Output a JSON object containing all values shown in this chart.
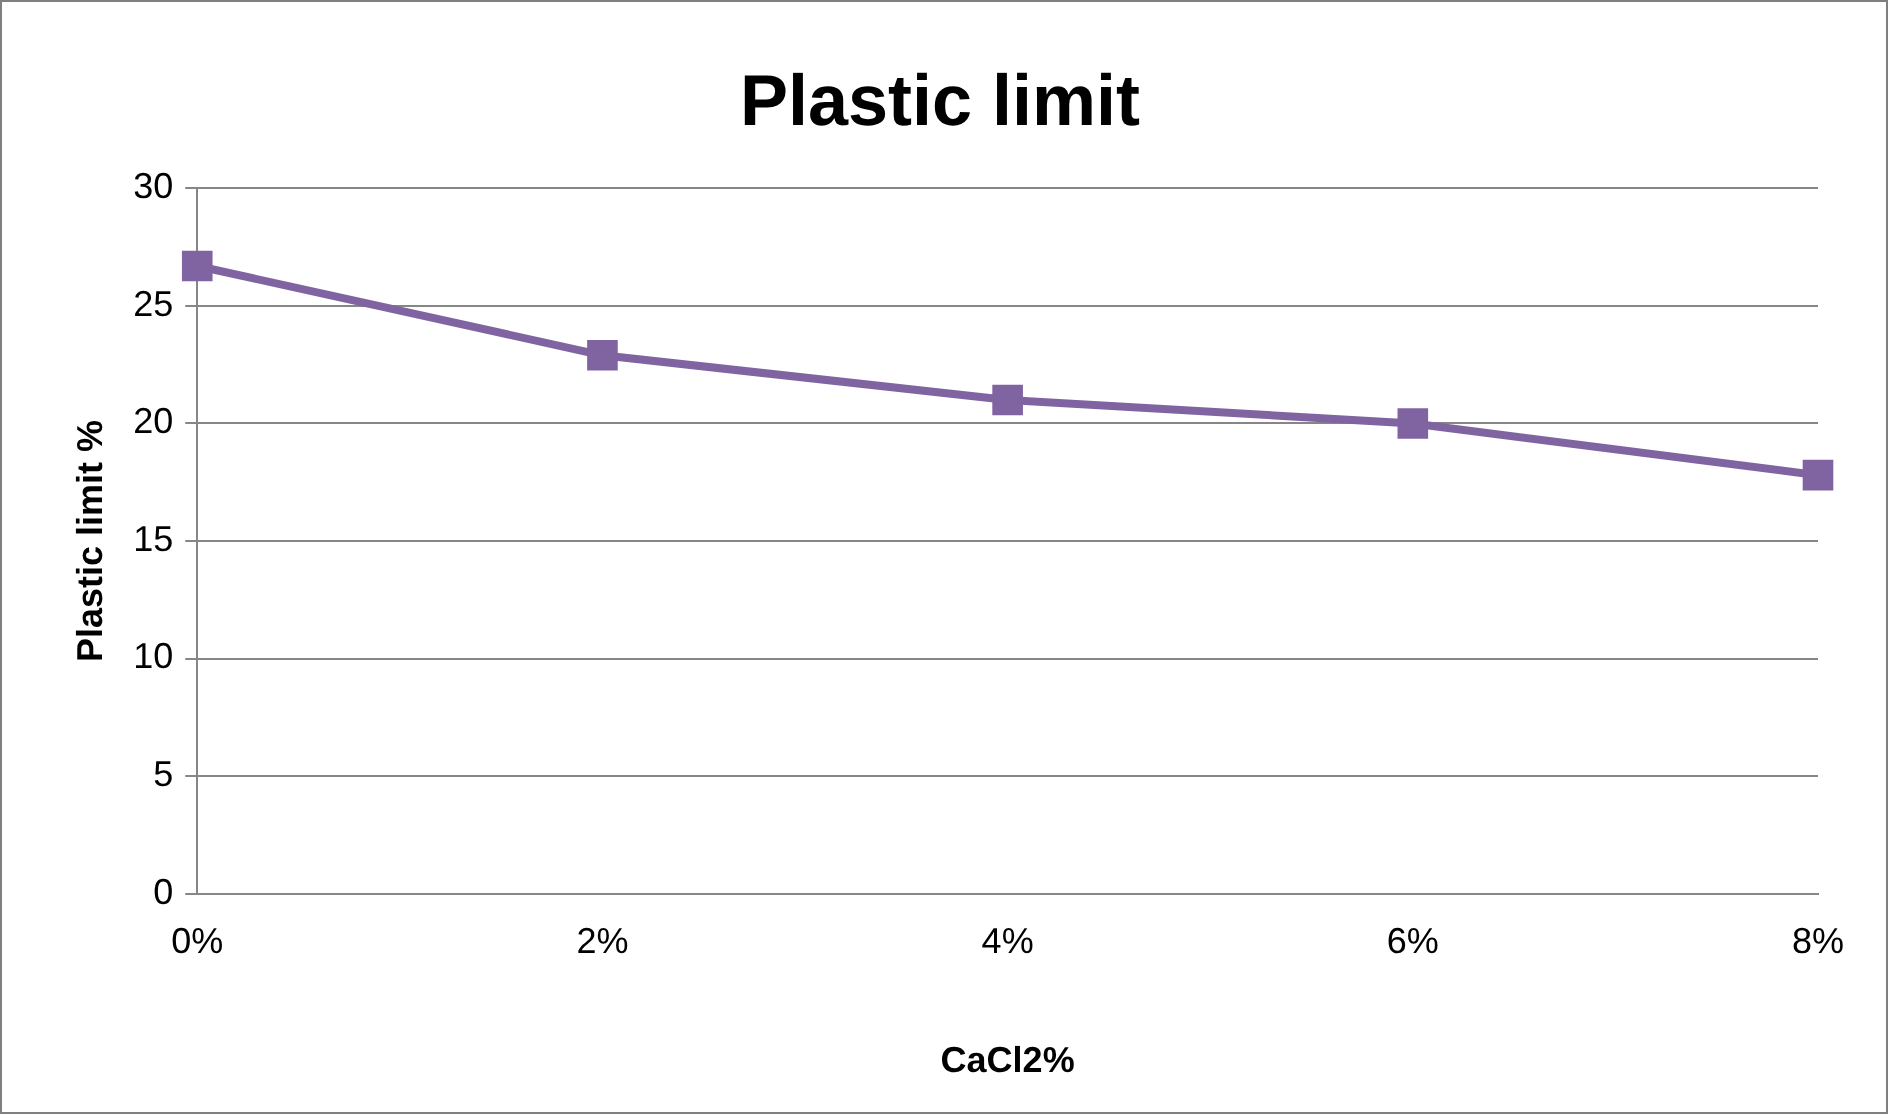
{
  "chart_data": {
    "type": "line",
    "title": "Plastic limit",
    "xlabel": "CaCl2%",
    "ylabel": "Plastic limit %",
    "categories": [
      "0%",
      "2%",
      "4%",
      "6%",
      "8%"
    ],
    "series": [
      {
        "color": "#8064a2",
        "values": [
          26.7,
          22.9,
          21.0,
          20.0,
          17.8
        ]
      }
    ],
    "ylim": [
      0,
      30
    ],
    "yticks": [
      0,
      5,
      10,
      15,
      20,
      25,
      30
    ],
    "grid": "y",
    "legend": false,
    "marker": "square",
    "line_style": "solid"
  }
}
